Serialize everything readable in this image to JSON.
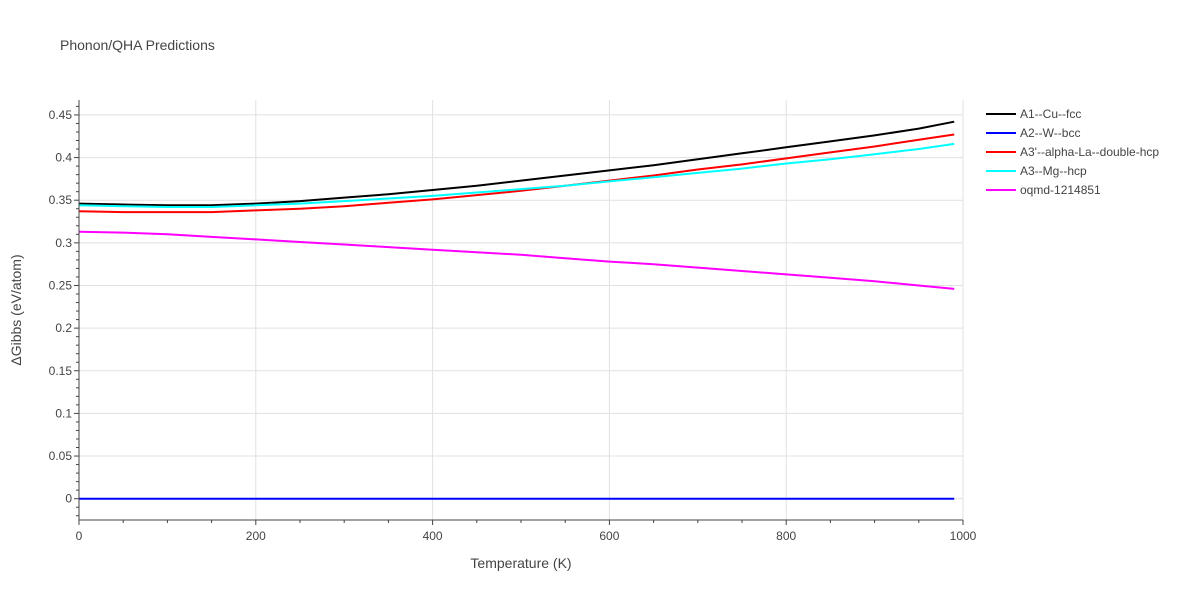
{
  "chart_data": {
    "type": "line",
    "title": "Phonon/QHA Predictions",
    "xlabel": "Temperature (K)",
    "ylabel": "ΔGibbs (eV/atom)",
    "xlim": [
      0,
      1000
    ],
    "ylim": [
      -0.025,
      0.4675
    ],
    "xticks": [
      0,
      200,
      400,
      600,
      800,
      1000
    ],
    "yticks": [
      0,
      0.05,
      0.1,
      0.15,
      0.2,
      0.25,
      0.3,
      0.35,
      0.4,
      0.45
    ],
    "ytick_labels": [
      "0",
      "0.05",
      "0.1",
      "0.15",
      "0.2",
      "0.25",
      "0.3",
      "0.35",
      "0.4",
      "0.45"
    ],
    "grid": true,
    "legend_position": "right",
    "series": [
      {
        "name": "A1--Cu--fcc",
        "color": "#000000",
        "x": [
          0,
          50,
          100,
          150,
          200,
          250,
          300,
          350,
          400,
          450,
          500,
          550,
          600,
          650,
          700,
          750,
          800,
          850,
          900,
          950,
          990
        ],
        "y": [
          0.346,
          0.345,
          0.344,
          0.344,
          0.346,
          0.349,
          0.353,
          0.357,
          0.362,
          0.367,
          0.373,
          0.379,
          0.385,
          0.391,
          0.398,
          0.405,
          0.412,
          0.419,
          0.426,
          0.434,
          0.442
        ]
      },
      {
        "name": "A2--W--bcc",
        "color": "#0000ff",
        "x": [
          0,
          990
        ],
        "y": [
          0,
          0
        ]
      },
      {
        "name": "A3'--alpha-La--double-hcp",
        "color": "#ff0000",
        "x": [
          0,
          50,
          100,
          150,
          200,
          250,
          300,
          350,
          400,
          450,
          500,
          550,
          600,
          650,
          700,
          750,
          800,
          850,
          900,
          950,
          990
        ],
        "y": [
          0.337,
          0.336,
          0.336,
          0.336,
          0.338,
          0.34,
          0.343,
          0.347,
          0.351,
          0.356,
          0.361,
          0.367,
          0.373,
          0.379,
          0.386,
          0.392,
          0.399,
          0.406,
          0.413,
          0.421,
          0.427
        ]
      },
      {
        "name": "A3--Mg--hcp",
        "color": "#00ffff",
        "x": [
          0,
          50,
          100,
          150,
          200,
          250,
          300,
          350,
          400,
          450,
          500,
          550,
          600,
          650,
          700,
          750,
          800,
          850,
          900,
          950,
          990
        ],
        "y": [
          0.344,
          0.343,
          0.342,
          0.342,
          0.344,
          0.346,
          0.349,
          0.352,
          0.355,
          0.359,
          0.363,
          0.367,
          0.372,
          0.377,
          0.382,
          0.387,
          0.393,
          0.398,
          0.404,
          0.41,
          0.416
        ]
      },
      {
        "name": "oqmd-1214851",
        "color": "#ff00ff",
        "x": [
          0,
          50,
          100,
          150,
          200,
          250,
          300,
          350,
          400,
          450,
          500,
          550,
          600,
          650,
          700,
          750,
          800,
          850,
          900,
          950,
          990
        ],
        "y": [
          0.313,
          0.312,
          0.31,
          0.307,
          0.304,
          0.301,
          0.298,
          0.295,
          0.292,
          0.289,
          0.286,
          0.282,
          0.278,
          0.275,
          0.271,
          0.267,
          0.263,
          0.259,
          0.255,
          0.25,
          0.246
        ]
      }
    ]
  }
}
